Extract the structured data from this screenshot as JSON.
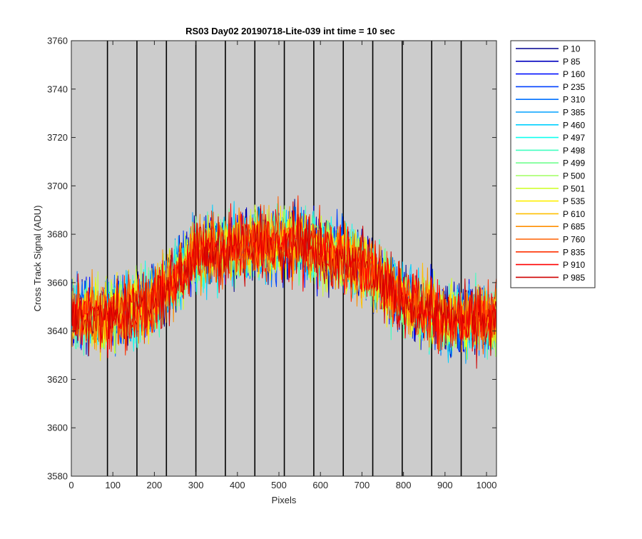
{
  "chart_data": {
    "type": "line",
    "title": "RS03 Day02 20190718-Lite-039 int time = 10 sec",
    "xlabel": "Pixels",
    "ylabel": "Cross Track Signal (ADU)",
    "xlim": [
      0,
      1024
    ],
    "ylim": [
      3580,
      3760
    ],
    "xticks": [
      0,
      100,
      200,
      300,
      400,
      500,
      600,
      700,
      800,
      900,
      1000
    ],
    "yticks": [
      3580,
      3600,
      3620,
      3640,
      3660,
      3680,
      3700,
      3720,
      3740,
      3760
    ],
    "grid": false,
    "legend_position": "outside-right",
    "axes_background": "#cccccc",
    "vertical_separators_x": [
      87,
      158,
      229,
      300,
      371,
      442,
      513,
      584,
      655,
      726,
      797,
      868,
      939
    ],
    "trend_profile": {
      "x": [
        0,
        100,
        200,
        300,
        400,
        500,
        550,
        600,
        700,
        800,
        900,
        1024
      ],
      "y": [
        3647,
        3647,
        3652,
        3672,
        3675,
        3677,
        3677,
        3673,
        3668,
        3652,
        3645,
        3645
      ],
      "noise_amplitude_adu": 20
    },
    "series": [
      {
        "name": "P 10",
        "color": "#00008f"
      },
      {
        "name": "P 85",
        "color": "#0000bf"
      },
      {
        "name": "P 160",
        "color": "#0010ff"
      },
      {
        "name": "P 235",
        "color": "#0040ff"
      },
      {
        "name": "P 310",
        "color": "#0070ff"
      },
      {
        "name": "P 385",
        "color": "#00a0ff"
      },
      {
        "name": "P 460",
        "color": "#00d0ff"
      },
      {
        "name": "P 497",
        "color": "#10ffef"
      },
      {
        "name": "P 498",
        "color": "#40ffbf"
      },
      {
        "name": "P 499",
        "color": "#70ff8f"
      },
      {
        "name": "P 500",
        "color": "#a0ff60"
      },
      {
        "name": "P 501",
        "color": "#d0ff30"
      },
      {
        "name": "P 535",
        "color": "#ffef00"
      },
      {
        "name": "P 610",
        "color": "#ffbf00"
      },
      {
        "name": "P 685",
        "color": "#ff8f00"
      },
      {
        "name": "P 760",
        "color": "#ff6000"
      },
      {
        "name": "P 835",
        "color": "#ff3000"
      },
      {
        "name": "P 910",
        "color": "#ff0000"
      },
      {
        "name": "P 985",
        "color": "#cf0000"
      }
    ]
  }
}
